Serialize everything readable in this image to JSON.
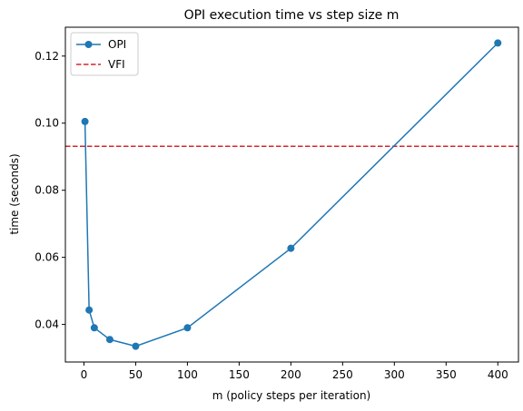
{
  "chart_data": {
    "type": "line",
    "title": "OPI execution time vs step size m",
    "xlabel": "m (policy steps per iteration)",
    "ylabel": "time (seconds)",
    "xlim": [
      -17.95,
      419.95
    ],
    "ylim": [
      0.0288,
      0.1286
    ],
    "xticks": [
      0,
      50,
      100,
      150,
      200,
      250,
      300,
      350,
      400
    ],
    "yticks": [
      0.04,
      0.06,
      0.08,
      0.1,
      0.12
    ],
    "ytick_labels": [
      "0.04",
      "0.06",
      "0.08",
      "0.10",
      "0.12"
    ],
    "grid": false,
    "legend_position": "top-left",
    "series": [
      {
        "name": "OPI",
        "style": "line-with-markers",
        "color": "#1f77b4",
        "x": [
          1,
          5,
          10,
          25,
          50,
          100,
          200,
          400
        ],
        "y": [
          0.1005,
          0.0443,
          0.039,
          0.0355,
          0.0335,
          0.039,
          0.0627,
          0.1239
        ]
      },
      {
        "name": "VFI",
        "style": "dashed-horizontal",
        "color": "#d62728",
        "y": 0.0931
      }
    ]
  }
}
